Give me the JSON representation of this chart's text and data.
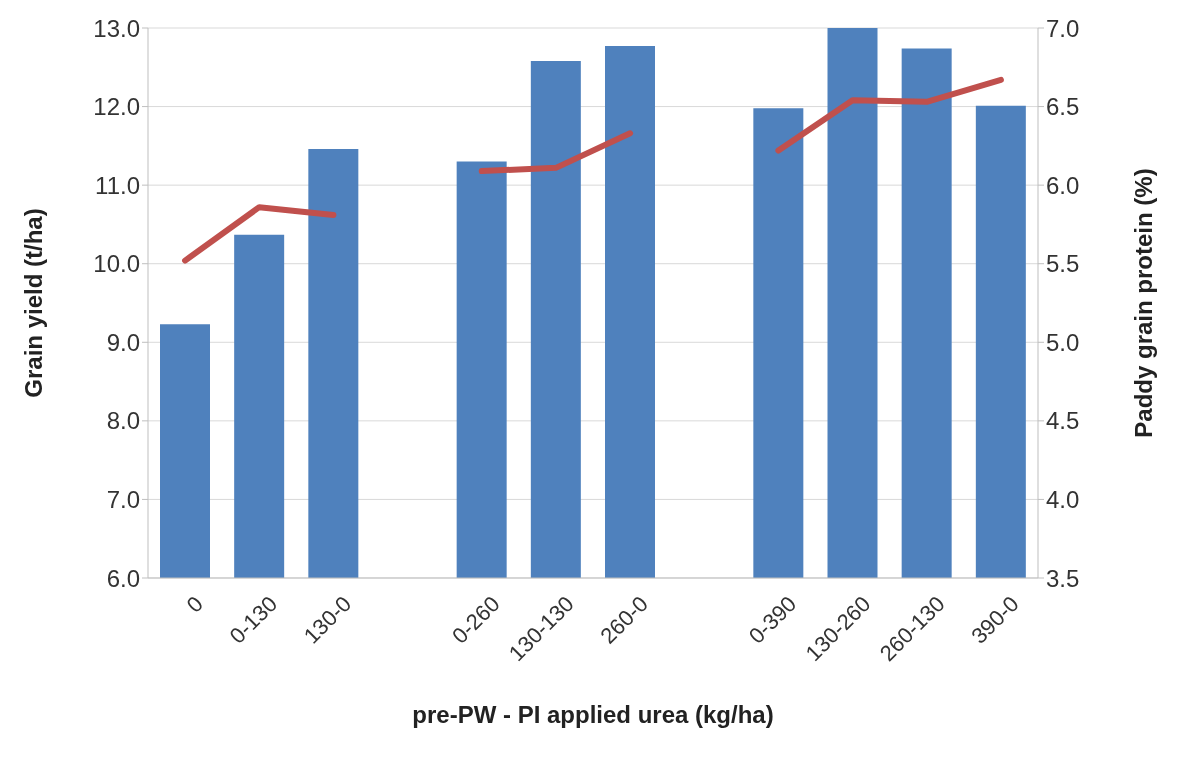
{
  "chart_data": {
    "type": "bar",
    "xlabel": "pre-PW - PI applied urea (kg/ha)",
    "ylabel": "Grain yield (t/ha)",
    "y2label": "Paddy grain protein (%)",
    "categories": [
      "0",
      "0-130",
      "130-0",
      null,
      "0-260",
      "130-130",
      "260-0",
      null,
      "0-390",
      "130-260",
      "260-130",
      "390-0"
    ],
    "series": [
      {
        "color": "#4f81bd",
        "values": [
          9.23,
          10.37,
          11.46,
          null,
          11.3,
          12.58,
          12.77,
          null,
          11.98,
          13.0,
          12.74,
          12.01
        ]
      },
      {
        "type": "line",
        "axis": "y2",
        "color": "#c0504d",
        "values": [
          5.52,
          5.86,
          5.81,
          null,
          6.09,
          6.11,
          6.33,
          null,
          6.22,
          6.54,
          6.53,
          6.67
        ]
      }
    ],
    "ylim": [
      6,
      13
    ],
    "yticks": [
      {
        "value": 6,
        "label": "6.0"
      },
      {
        "value": 7,
        "label": "7.0"
      },
      {
        "value": 8,
        "label": "8.0"
      },
      {
        "value": 9,
        "label": "9.0"
      },
      {
        "value": 10,
        "label": "10.0"
      },
      {
        "value": 11,
        "label": "11.0"
      },
      {
        "value": 12,
        "label": "12.0"
      },
      {
        "value": 13,
        "label": "13.0"
      }
    ],
    "y2lim": [
      3.5,
      7
    ],
    "y2ticks": [
      {
        "value": 3.5,
        "label": "3.5"
      },
      {
        "value": 4,
        "label": "4.0"
      },
      {
        "value": 4.5,
        "label": "4.5"
      },
      {
        "value": 5,
        "label": "5.0"
      },
      {
        "value": 5.5,
        "label": "5.5"
      },
      {
        "value": 6,
        "label": "6.0"
      },
      {
        "value": 6.5,
        "label": "6.5"
      },
      {
        "value": 7,
        "label": "7.0"
      }
    ],
    "grid": "y",
    "legend": false,
    "marker": "none",
    "line_style": "solid"
  }
}
